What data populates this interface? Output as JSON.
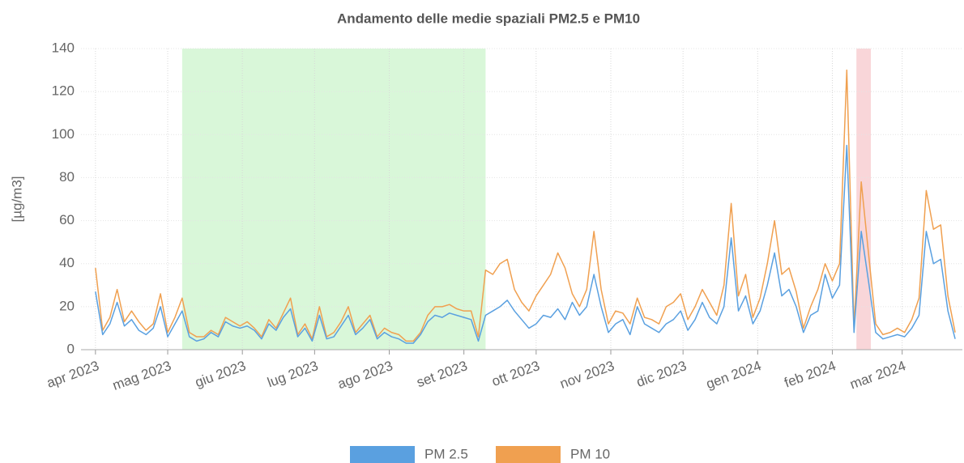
{
  "chart_data": {
    "type": "line",
    "title": "Andamento delle medie spaziali PM2.5 e PM10",
    "ylabel": "[µg/m3]",
    "x": [
      0,
      3,
      6,
      9,
      12,
      15,
      18,
      21,
      24,
      27,
      30,
      33,
      36,
      39,
      42,
      45,
      48,
      51,
      54,
      57,
      60,
      63,
      66,
      69,
      72,
      75,
      78,
      81,
      84,
      87,
      90,
      93,
      96,
      99,
      102,
      105,
      108,
      111,
      114,
      117,
      120,
      123,
      126,
      129,
      132,
      135,
      138,
      141,
      144,
      147,
      150,
      153,
      156,
      159,
      162,
      165,
      168,
      171,
      174,
      177,
      180,
      183,
      186,
      189,
      192,
      195,
      198,
      201,
      204,
      207,
      210,
      213,
      216,
      219,
      222,
      225,
      228,
      231,
      234,
      237,
      240,
      243,
      246,
      249,
      252,
      255,
      258,
      261,
      264,
      267,
      270,
      273,
      276,
      279,
      282,
      285,
      288,
      291,
      294,
      297,
      300,
      303,
      306,
      309,
      312,
      315,
      318,
      321,
      324,
      327,
      330,
      333,
      336,
      339,
      342,
      345,
      348,
      351,
      354,
      357
    ],
    "series": [
      {
        "name": "PM 2.5",
        "color": "#5aa0e0",
        "values": [
          27,
          7,
          12,
          22,
          11,
          14,
          9,
          7,
          10,
          20,
          6,
          12,
          18,
          6,
          4,
          5,
          8,
          6,
          13,
          11,
          10,
          11,
          9,
          5,
          12,
          9,
          15,
          19,
          6,
          10,
          4,
          16,
          5,
          6,
          11,
          16,
          7,
          10,
          14,
          5,
          8,
          6,
          5,
          3,
          3,
          7,
          13,
          16,
          15,
          17,
          16,
          15,
          14,
          4,
          16,
          18,
          20,
          23,
          18,
          14,
          10,
          12,
          16,
          15,
          19,
          14,
          22,
          16,
          20,
          35,
          20,
          8,
          12,
          14,
          7,
          20,
          12,
          10,
          8,
          12,
          14,
          18,
          9,
          14,
          22,
          15,
          12,
          20,
          52,
          18,
          25,
          12,
          18,
          30,
          45,
          25,
          28,
          20,
          8,
          16,
          18,
          35,
          24,
          30,
          95,
          8,
          55,
          32,
          8,
          5,
          6,
          7,
          6,
          10,
          16,
          55,
          40,
          42,
          18,
          5
        ]
      },
      {
        "name": "PM 10",
        "color": "#f0a050",
        "values": [
          38,
          9,
          15,
          28,
          13,
          18,
          13,
          9,
          12,
          26,
          8,
          15,
          24,
          8,
          6,
          6,
          9,
          7,
          15,
          13,
          11,
          13,
          10,
          6,
          14,
          10,
          17,
          24,
          7,
          12,
          5,
          20,
          6,
          8,
          13,
          20,
          8,
          12,
          16,
          6,
          10,
          8,
          7,
          4,
          4,
          8,
          16,
          20,
          20,
          21,
          19,
          18,
          18,
          6,
          37,
          35,
          40,
          42,
          28,
          22,
          18,
          25,
          30,
          35,
          45,
          38,
          26,
          20,
          28,
          55,
          28,
          12,
          18,
          17,
          12,
          24,
          15,
          14,
          12,
          20,
          22,
          26,
          14,
          20,
          28,
          22,
          16,
          30,
          68,
          25,
          35,
          15,
          24,
          40,
          60,
          35,
          38,
          27,
          10,
          20,
          28,
          40,
          32,
          40,
          130,
          10,
          78,
          45,
          12,
          7,
          8,
          10,
          8,
          14,
          24,
          74,
          56,
          58,
          25,
          8
        ]
      }
    ],
    "xlim": [
      -6,
      360
    ],
    "xticks": [
      {
        "value": 0,
        "label": "apr 2023"
      },
      {
        "value": 30,
        "label": "mag 2023"
      },
      {
        "value": 61,
        "label": "giu 2023"
      },
      {
        "value": 91,
        "label": "lug 2023"
      },
      {
        "value": 122,
        "label": "ago 2023"
      },
      {
        "value": 153,
        "label": "set 2023"
      },
      {
        "value": 183,
        "label": "ott 2023"
      },
      {
        "value": 214,
        "label": "nov 2023"
      },
      {
        "value": 244,
        "label": "dic 2023"
      },
      {
        "value": 275,
        "label": "gen 2024"
      },
      {
        "value": 306,
        "label": "feb 2024"
      },
      {
        "value": 335,
        "label": "mar 2024"
      }
    ],
    "ylim": [
      0,
      140
    ],
    "yticks": [
      0,
      20,
      40,
      60,
      80,
      100,
      120,
      140
    ],
    "grid": true,
    "bands": [
      {
        "from": 36,
        "to": 162,
        "color": "#d9f7d9"
      },
      {
        "from": 316,
        "to": 322,
        "color": "#f9d6d9"
      }
    ],
    "legend": "bottom"
  }
}
